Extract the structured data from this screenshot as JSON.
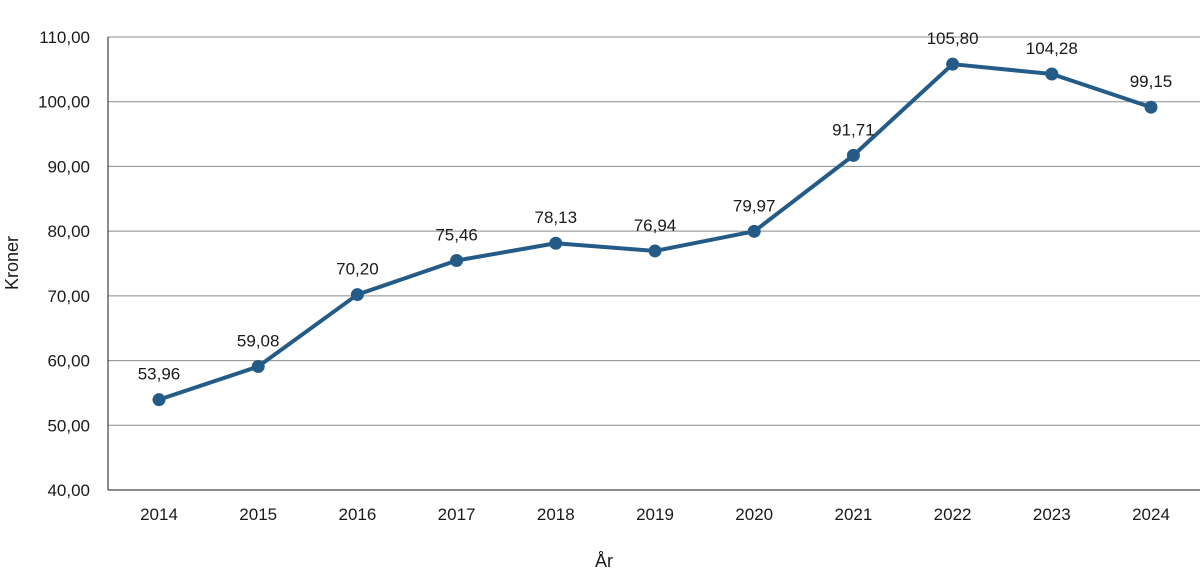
{
  "chart_data": {
    "type": "line",
    "x": [
      "2014",
      "2015",
      "2016",
      "2017",
      "2018",
      "2019",
      "2020",
      "2021",
      "2022",
      "2023",
      "2024"
    ],
    "series": [
      {
        "values": [
          53.96,
          59.08,
          70.2,
          75.46,
          78.13,
          76.94,
          79.97,
          91.71,
          105.8,
          104.28,
          99.15
        ],
        "labels": [
          "53,96",
          "59,08",
          "70,20",
          "75,46",
          "78,13",
          "76,94",
          "79,97",
          "91,71",
          "105,80",
          "104,28",
          "99,15"
        ],
        "color": "#245c87"
      }
    ],
    "ylim": [
      40,
      110
    ],
    "yticks": [
      40,
      50,
      60,
      70,
      80,
      90,
      100,
      110
    ],
    "ytick_labels": [
      "40,00",
      "50,00",
      "60,00",
      "70,00",
      "80,00",
      "90,00",
      "100,00",
      "110,00"
    ],
    "xlabel": "År",
    "ylabel": "Kroner",
    "grid": true,
    "grid_color": "#8c8c8c",
    "legend": false
  }
}
